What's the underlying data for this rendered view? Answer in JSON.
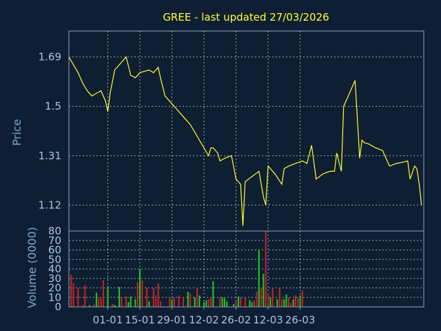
{
  "chart_data": [
    {
      "type": "line",
      "title": "GREE - last updated 27/03/2026",
      "ylabel": "Price",
      "ylim": [
        1.02,
        1.79
      ],
      "yticks": [
        "1.69",
        "1.5",
        "1.31",
        "1.12"
      ],
      "grid": true,
      "color": "#ffff33",
      "points": [
        [
          "2025-12-15",
          1.69
        ],
        [
          "2025-12-17",
          1.66
        ],
        [
          "2025-12-19",
          1.63
        ],
        [
          "2025-12-21",
          1.59
        ],
        [
          "2025-12-23",
          1.56
        ],
        [
          "2025-12-25",
          1.54
        ],
        [
          "2025-12-27",
          1.55
        ],
        [
          "2025-12-29",
          1.56
        ],
        [
          "2025-12-31",
          1.52
        ],
        [
          "2026-01-01",
          1.48
        ],
        [
          "2026-01-02",
          1.55
        ],
        [
          "2026-01-04",
          1.64
        ],
        [
          "2026-01-06",
          1.66
        ],
        [
          "2026-01-08",
          1.68
        ],
        [
          "2026-01-09",
          1.69
        ],
        [
          "2026-01-11",
          1.62
        ],
        [
          "2026-01-13",
          1.61
        ],
        [
          "2026-01-15",
          1.63
        ],
        [
          "2026-01-17",
          1.635
        ],
        [
          "2026-01-19",
          1.64
        ],
        [
          "2026-01-21",
          1.63
        ],
        [
          "2026-01-23",
          1.65
        ],
        [
          "2026-01-24",
          1.61
        ],
        [
          "2026-01-26",
          1.54
        ],
        [
          "2026-01-28",
          1.52
        ],
        [
          "2026-01-31",
          1.49
        ],
        [
          "2026-02-03",
          1.46
        ],
        [
          "2026-02-06",
          1.43
        ],
        [
          "2026-02-10",
          1.37
        ],
        [
          "2026-02-12",
          1.34
        ],
        [
          "2026-02-14",
          1.31
        ],
        [
          "2026-02-15",
          1.34
        ],
        [
          "2026-02-16",
          1.34
        ],
        [
          "2026-02-18",
          1.32
        ],
        [
          "2026-02-19",
          1.29
        ],
        [
          "2026-02-21",
          1.3
        ],
        [
          "2026-02-24",
          1.31
        ],
        [
          "2026-02-26",
          1.22
        ],
        [
          "2026-02-28",
          1.2
        ],
        [
          "2026-03-01",
          1.04
        ],
        [
          "2026-03-02",
          1.21
        ],
        [
          "2026-03-05",
          1.23
        ],
        [
          "2026-03-08",
          1.25
        ],
        [
          "2026-03-10",
          1.15
        ],
        [
          "2026-03-11",
          1.12
        ],
        [
          "2026-03-12",
          1.27
        ],
        [
          "2026-03-15",
          1.24
        ],
        [
          "2026-03-18",
          1.2
        ],
        [
          "2026-03-19",
          1.26
        ],
        [
          "2026-03-21",
          1.27
        ],
        [
          "2026-03-24",
          1.28
        ],
        [
          "2026-03-27",
          1.29
        ],
        [
          "2026-03-29",
          1.28
        ],
        [
          "2026-03-31",
          1.35
        ],
        [
          "2026-04-02",
          1.22
        ],
        [
          "2026-04-05",
          1.24
        ],
        [
          "2026-04-08",
          1.25
        ],
        [
          "2026-04-10",
          1.25
        ],
        [
          "2026-04-11",
          1.32
        ],
        [
          "2026-04-13",
          1.25
        ],
        [
          "2026-04-14",
          1.5
        ],
        [
          "2026-04-16",
          1.54
        ],
        [
          "2026-04-18",
          1.58
        ],
        [
          "2026-04-19",
          1.6
        ],
        [
          "2026-04-21",
          1.3
        ],
        [
          "2026-04-22",
          1.37
        ],
        [
          "2026-04-23",
          1.36
        ],
        [
          "2026-04-25",
          1.355
        ],
        [
          "2026-04-28",
          1.34
        ],
        [
          "2026-05-01",
          1.33
        ],
        [
          "2026-05-04",
          1.27
        ],
        [
          "2026-05-07",
          1.28
        ],
        [
          "2026-05-10",
          1.285
        ],
        [
          "2026-05-12",
          1.29
        ],
        [
          "2026-05-13",
          1.22
        ],
        [
          "2026-05-15",
          1.27
        ],
        [
          "2026-05-16",
          1.26
        ],
        [
          "2026-05-17",
          1.2
        ],
        [
          "2026-05-18",
          1.12
        ]
      ]
    },
    {
      "type": "bar",
      "ylabel": "Volume (0000)",
      "ylim": [
        0,
        80
      ],
      "yticks": [
        0,
        10,
        20,
        30,
        40,
        50,
        60,
        70,
        80
      ],
      "grid": true,
      "xticks": [
        "01-01",
        "15-01",
        "29-01",
        "12-02",
        "26-02",
        "12-03",
        "26-03"
      ],
      "xtick_dates": [
        "2026-01-01",
        "2026-01-15",
        "2026-01-29",
        "2026-02-12",
        "2026-02-26",
        "2026-03-12",
        "2026-03-26"
      ],
      "up_color": "#22cc22",
      "down_color": "#cc2222",
      "bars": [
        [
          "2025-12-16",
          34,
          "down"
        ],
        [
          "2025-12-17",
          25,
          "down"
        ],
        [
          "2025-12-19",
          20,
          "down"
        ],
        [
          "2025-12-21",
          2,
          "down"
        ],
        [
          "2025-12-22",
          23,
          "down"
        ],
        [
          "2025-12-24",
          2,
          "up"
        ],
        [
          "2025-12-26",
          3,
          "down"
        ],
        [
          "2025-12-27",
          15,
          "up"
        ],
        [
          "2025-12-28",
          10,
          "down"
        ],
        [
          "2025-12-29",
          9,
          "down"
        ],
        [
          "2025-12-30",
          28,
          "down"
        ],
        [
          "2026-01-01",
          22,
          "up"
        ],
        [
          "2026-01-03",
          3,
          "down"
        ],
        [
          "2026-01-04",
          2,
          "up"
        ],
        [
          "2026-01-06",
          21,
          "up"
        ],
        [
          "2026-01-07",
          10,
          "down"
        ],
        [
          "2026-01-09",
          11,
          "down"
        ],
        [
          "2026-01-10",
          5,
          "up"
        ],
        [
          "2026-01-11",
          11,
          "up"
        ],
        [
          "2026-01-13",
          8,
          "up"
        ],
        [
          "2026-01-14",
          26,
          "down"
        ],
        [
          "2026-01-15",
          40,
          "up"
        ],
        [
          "2026-01-16",
          28,
          "down"
        ],
        [
          "2026-01-18",
          20,
          "down"
        ],
        [
          "2026-01-19",
          6,
          "up"
        ],
        [
          "2026-01-21",
          20,
          "down"
        ],
        [
          "2026-01-22",
          12,
          "down"
        ],
        [
          "2026-01-23",
          25,
          "down"
        ],
        [
          "2026-01-24",
          6,
          "down"
        ],
        [
          "2026-01-28",
          10,
          "down"
        ],
        [
          "2026-01-29",
          8,
          "up"
        ],
        [
          "2026-01-30",
          10,
          "down"
        ],
        [
          "2026-02-01",
          12,
          "down"
        ],
        [
          "2026-02-03",
          10,
          "down"
        ],
        [
          "2026-02-05",
          16,
          "up"
        ],
        [
          "2026-02-06",
          14,
          "down"
        ],
        [
          "2026-02-08",
          10,
          "up"
        ],
        [
          "2026-02-09",
          20,
          "down"
        ],
        [
          "2026-02-10",
          12,
          "up"
        ],
        [
          "2026-02-12",
          5,
          "up"
        ],
        [
          "2026-02-13",
          7,
          "up"
        ],
        [
          "2026-02-14",
          8,
          "down"
        ],
        [
          "2026-02-15",
          10,
          "down"
        ],
        [
          "2026-02-16",
          27,
          "up"
        ],
        [
          "2026-02-19",
          10,
          "down"
        ],
        [
          "2026-02-20",
          10,
          "up"
        ],
        [
          "2026-02-21",
          9,
          "up"
        ],
        [
          "2026-02-22",
          6,
          "up"
        ],
        [
          "2026-02-25",
          3,
          "up"
        ],
        [
          "2026-02-26",
          7,
          "down"
        ],
        [
          "2026-02-27",
          11,
          "up"
        ],
        [
          "2026-02-28",
          10,
          "down"
        ],
        [
          "2026-03-02",
          10,
          "down"
        ],
        [
          "2026-03-04",
          7,
          "up"
        ],
        [
          "2026-03-05",
          5,
          "up"
        ],
        [
          "2026-03-06",
          7,
          "down"
        ],
        [
          "2026-03-07",
          16,
          "down"
        ],
        [
          "2026-03-08",
          60,
          "up"
        ],
        [
          "2026-03-09",
          20,
          "down"
        ],
        [
          "2026-03-10",
          35,
          "up"
        ],
        [
          "2026-03-11",
          80,
          "down"
        ],
        [
          "2026-03-12",
          14,
          "down"
        ],
        [
          "2026-03-13",
          10,
          "up"
        ],
        [
          "2026-03-14",
          20,
          "down"
        ],
        [
          "2026-03-16",
          8,
          "up"
        ],
        [
          "2026-03-17",
          20,
          "down"
        ],
        [
          "2026-03-18",
          8,
          "down"
        ],
        [
          "2026-03-19",
          8,
          "up"
        ],
        [
          "2026-03-20",
          13,
          "up"
        ],
        [
          "2026-03-21",
          10,
          "down"
        ],
        [
          "2026-03-22",
          4,
          "down"
        ],
        [
          "2026-03-23",
          8,
          "up"
        ],
        [
          "2026-03-24",
          12,
          "down"
        ],
        [
          "2026-03-25",
          9,
          "down"
        ],
        [
          "2026-03-26",
          12,
          "up"
        ],
        [
          "2026-03-27",
          17,
          "down"
        ]
      ]
    }
  ]
}
